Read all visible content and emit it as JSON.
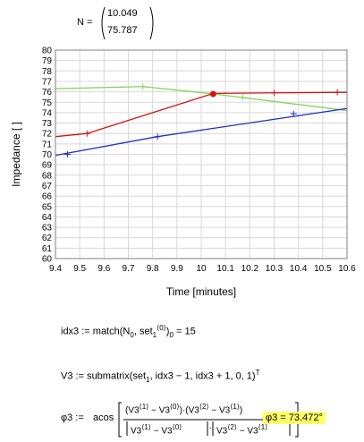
{
  "vector": {
    "label": "N =",
    "values": [
      "10.049",
      "75.787"
    ]
  },
  "chart_data": {
    "type": "line",
    "xlabel": "Time [minutes]",
    "ylabel": "Impedance [ ]",
    "xlim": [
      9.4,
      10.6
    ],
    "ylim": [
      60,
      80
    ],
    "xticks": [
      "9.4",
      "9.5",
      "9.6",
      "9.7",
      "9.8",
      "9.9",
      "10",
      "10.1",
      "10.2",
      "10.3",
      "10.4",
      "10.5",
      "10.6"
    ],
    "yticks": [
      "60",
      "61",
      "62",
      "63",
      "64",
      "65",
      "66",
      "67",
      "68",
      "69",
      "70",
      "71",
      "72",
      "73",
      "74",
      "75",
      "76",
      "77",
      "78",
      "79",
      "80"
    ],
    "grid": true,
    "series": [
      {
        "color": "#d11414",
        "points": [
          [
            9.4,
            71.7
          ],
          [
            9.53,
            72.0
          ],
          [
            10.05,
            75.85
          ],
          [
            10.3,
            75.9
          ],
          [
            10.6,
            75.95
          ]
        ],
        "markers": [
          [
            9.53,
            72.0
          ],
          [
            10.3,
            75.9
          ],
          [
            10.56,
            75.95
          ]
        ]
      },
      {
        "color": "#7fd45a",
        "points": [
          [
            9.4,
            76.3
          ],
          [
            9.76,
            76.5
          ],
          [
            10.05,
            75.8
          ],
          [
            10.6,
            74.2
          ]
        ],
        "markers": [
          [
            9.76,
            76.5
          ],
          [
            10.17,
            75.45
          ]
        ]
      },
      {
        "color": "#1f2fc9",
        "points": [
          [
            9.4,
            69.9
          ],
          [
            9.82,
            71.7
          ],
          [
            10.6,
            74.4
          ]
        ],
        "markers": [
          [
            9.45,
            70.0
          ],
          [
            9.82,
            71.7
          ],
          [
            10.38,
            73.9
          ]
        ]
      }
    ],
    "highlight_point": [
      10.049,
      75.787
    ]
  },
  "expressions": {
    "idx3": {
      "lhs": "idx3 :=",
      "fn": "match",
      "arg1": "N",
      "arg1_sub": "0",
      "arg2": "set",
      "arg2_sub": "1",
      "arg2_sup": "⟨0⟩",
      "sub0": "0",
      "result": "= 15"
    },
    "v3": {
      "lhs": "V3 :=",
      "fn": "submatrix",
      "arg_set": "set",
      "arg_set_sub": "1",
      "args": ", idx3 − 1, idx3 + 1, 0, 1",
      "sup": "T"
    },
    "phi3": {
      "lhs": "φ3 :=",
      "fn": "acos",
      "v": "V3",
      "s0": "⟨0⟩",
      "s1": "⟨1⟩",
      "s2": "⟨2⟩",
      "result_label": "φ3 =",
      "result_value": "73.472",
      "result_unit": "°"
    }
  }
}
